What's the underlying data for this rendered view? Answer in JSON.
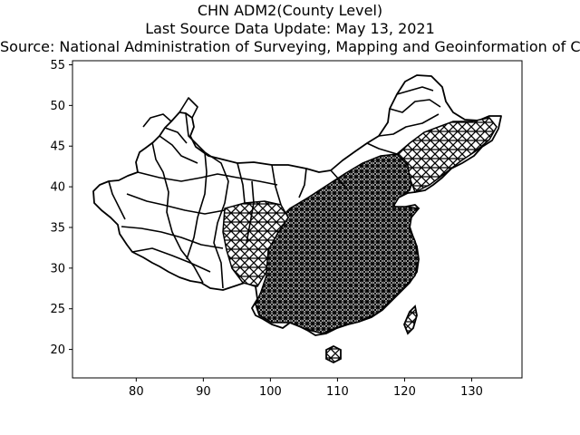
{
  "figure": {
    "title_lines": [
      "CHN ADM2(County Level)",
      "Last Source Data Update: May 13, 2021",
      "Source: National Administration of Surveying, Mapping and Geoinformation of China"
    ]
  },
  "chart_data": {
    "type": "map",
    "title": "CHN ADM2(County Level)",
    "subtitle": "Last Source Data Update: May 13, 2021",
    "source": "Source: National Administration of Surveying, Mapping and Geoinformation of China",
    "xlim": [
      70.5,
      137.5
    ],
    "ylim": [
      16.5,
      55.5
    ],
    "xticks": [
      "80",
      "90",
      "100",
      "110",
      "120",
      "130"
    ],
    "yticks": [
      "20",
      "25",
      "30",
      "35",
      "40",
      "45",
      "50",
      "55"
    ],
    "grid": false,
    "line_color": "#000000",
    "fill_color": "#ffffff"
  }
}
